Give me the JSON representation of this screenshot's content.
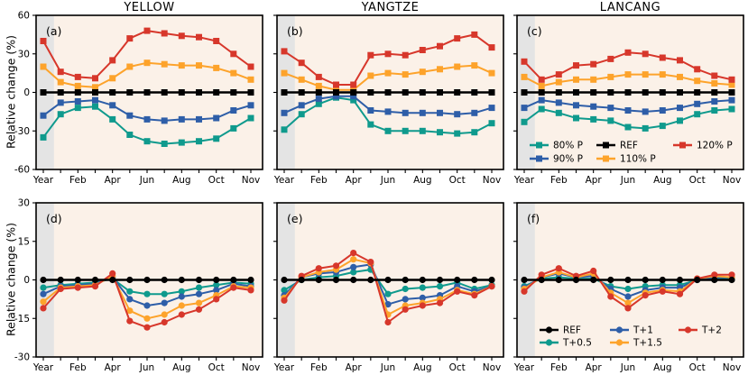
{
  "figure": {
    "column_titles": [
      "YELLOW",
      "YANGTZE",
      "LANCANG"
    ],
    "ylabel": "Relative change (%)",
    "x_tick_labels": [
      "Year",
      "Feb",
      "Apr",
      "Jun",
      "Aug",
      "Oct",
      "Nov"
    ],
    "plot_bg": "#FBF1E8",
    "year_band_color": "#E4E4E4",
    "axis_color": "#000000",
    "colors": {
      "80% P": "#0F9A8D",
      "90% P": "#2E5EA8",
      "REF": "#000000",
      "110% P": "#FDA32B",
      "120% P": "#D7372B",
      "T+0.5": "#0F9A8D",
      "T+1": "#2E5EA8",
      "T+1.5": "#FDA32B",
      "T+2": "#D7372B"
    }
  },
  "legend_precip": {
    "items": [
      {
        "label": "80% P",
        "row": 0,
        "col": 0
      },
      {
        "label": "REF",
        "row": 0,
        "col": 1
      },
      {
        "label": "120% P",
        "row": 0,
        "col": 2
      },
      {
        "label": "90% P",
        "row": 1,
        "col": 0
      },
      {
        "label": "110% P",
        "row": 1,
        "col": 1
      }
    ]
  },
  "legend_temp": {
    "items": [
      {
        "label": "REF",
        "row": 0,
        "col": 0
      },
      {
        "label": "T+1",
        "row": 0,
        "col": 1
      },
      {
        "label": "T+2",
        "row": 0,
        "col": 2
      },
      {
        "label": "T+0.5",
        "row": 1,
        "col": 0
      },
      {
        "label": "T+1.5",
        "row": 1,
        "col": 1
      }
    ]
  },
  "chart_data": [
    {
      "type": "line",
      "panel_label": "(a)",
      "title": "YELLOW",
      "row": 0,
      "col": 0,
      "ylim": [
        -60,
        60
      ],
      "yticks": [
        60,
        30,
        0,
        -30,
        -60
      ],
      "marker": "square",
      "series": [
        {
          "name": "80% P",
          "values": [
            -35,
            -17,
            -12,
            -11,
            -21,
            -33,
            -38,
            -40,
            -39,
            -38,
            -36,
            -28,
            -20
          ]
        },
        {
          "name": "90% P",
          "values": [
            -18,
            -8,
            -7,
            -6,
            -10,
            -18,
            -21,
            -22,
            -21,
            -21,
            -20,
            -14,
            -10
          ]
        },
        {
          "name": "110% P",
          "values": [
            20,
            8,
            5,
            4,
            11,
            20,
            23,
            22,
            21,
            21,
            19,
            15,
            10
          ]
        },
        {
          "name": "120% P",
          "values": [
            40,
            16,
            12,
            11,
            25,
            42,
            48,
            46,
            44,
            43,
            40,
            30,
            20
          ]
        },
        {
          "name": "REF",
          "values": [
            0,
            0,
            0,
            0,
            0,
            0,
            0,
            0,
            0,
            0,
            0,
            0,
            0
          ]
        }
      ]
    },
    {
      "type": "line",
      "panel_label": "(b)",
      "title": "YANGTZE",
      "row": 0,
      "col": 1,
      "ylim": [
        -60,
        60
      ],
      "yticks": [
        60,
        30,
        0,
        -30,
        -60
      ],
      "marker": "square",
      "series": [
        {
          "name": "80% P",
          "values": [
            -29,
            -17,
            -9,
            -4,
            -6,
            -25,
            -30,
            -30,
            -30,
            -31,
            -32,
            -31,
            -24
          ]
        },
        {
          "name": "90% P",
          "values": [
            -16,
            -10,
            -5,
            -3,
            -3,
            -14,
            -15,
            -16,
            -16,
            -16,
            -17,
            -16,
            -12
          ]
        },
        {
          "name": "110% P",
          "values": [
            15,
            10,
            5,
            2,
            2,
            13,
            15,
            14,
            16,
            18,
            20,
            21,
            15
          ]
        },
        {
          "name": "120% P",
          "values": [
            32,
            23,
            12,
            6,
            6,
            29,
            30,
            29,
            33,
            36,
            42,
            45,
            35
          ]
        },
        {
          "name": "REF",
          "values": [
            0,
            0,
            0,
            0,
            0,
            0,
            0,
            0,
            0,
            0,
            0,
            0,
            0
          ]
        }
      ]
    },
    {
      "type": "line",
      "panel_label": "(c)",
      "title": "LANCANG",
      "row": 0,
      "col": 2,
      "ylim": [
        -60,
        60
      ],
      "yticks": [
        60,
        30,
        0,
        -30,
        -60
      ],
      "marker": "square",
      "series": [
        {
          "name": "80% P",
          "values": [
            -23,
            -13,
            -16,
            -20,
            -21,
            -22,
            -27,
            -28,
            -26,
            -22,
            -17,
            -14,
            -13
          ]
        },
        {
          "name": "90% P",
          "values": [
            -12,
            -6,
            -8,
            -10,
            -11,
            -12,
            -14,
            -15,
            -14,
            -12,
            -9,
            -7,
            -6
          ]
        },
        {
          "name": "110% P",
          "values": [
            12,
            5,
            8,
            10,
            10,
            12,
            14,
            14,
            14,
            12,
            9,
            7,
            6
          ]
        },
        {
          "name": "120% P",
          "values": [
            24,
            10,
            14,
            21,
            22,
            26,
            31,
            30,
            27,
            25,
            18,
            13,
            10
          ]
        },
        {
          "name": "REF",
          "values": [
            0,
            0,
            0,
            0,
            0,
            0,
            0,
            0,
            0,
            0,
            0,
            0,
            0
          ]
        }
      ]
    },
    {
      "type": "line",
      "panel_label": "(d)",
      "title": "YELLOW",
      "row": 1,
      "col": 0,
      "ylim": [
        -30,
        30
      ],
      "yticks": [
        30,
        15,
        0,
        -15,
        -30
      ],
      "marker": "circle",
      "series": [
        {
          "name": "T+0.5",
          "values": [
            -3,
            -2,
            -1.5,
            -1,
            0.5,
            -4.5,
            -5.5,
            -5.5,
            -4.5,
            -3,
            -2,
            -1,
            -1.5
          ]
        },
        {
          "name": "T+1",
          "values": [
            -5.5,
            -2.5,
            -2,
            -1.5,
            1,
            -7.5,
            -10,
            -9,
            -6.5,
            -5.5,
            -4,
            -1.5,
            -2.5
          ]
        },
        {
          "name": "T+1.5",
          "values": [
            -8.5,
            -3,
            -2.5,
            -2,
            1.5,
            -12,
            -15,
            -13.5,
            -10,
            -9,
            -6,
            -2.5,
            -3
          ]
        },
        {
          "name": "T+2",
          "values": [
            -11,
            -3.5,
            -3,
            -2.5,
            2.5,
            -16,
            -18.5,
            -16.5,
            -13.5,
            -11.5,
            -7.5,
            -3,
            -4
          ]
        },
        {
          "name": "REF",
          "values": [
            0,
            0,
            0,
            0,
            0,
            0,
            0,
            0,
            0,
            0,
            0,
            0,
            0
          ]
        }
      ]
    },
    {
      "type": "line",
      "panel_label": "(e)",
      "title": "YANGTZE",
      "row": 1,
      "col": 1,
      "ylim": [
        -30,
        30
      ],
      "yticks": [
        30,
        15,
        0,
        -15,
        -30
      ],
      "marker": "circle",
      "series": [
        {
          "name": "T+0.5",
          "values": [
            -4,
            0,
            1,
            1.5,
            3,
            4,
            -5.5,
            -3.5,
            -3,
            -2.5,
            -1,
            -3.5,
            -2
          ]
        },
        {
          "name": "T+1",
          "values": [
            -6,
            1,
            2.5,
            3,
            5,
            6,
            -9.5,
            -7.5,
            -7,
            -6,
            -2.5,
            -4.5,
            -2.5
          ]
        },
        {
          "name": "T+1.5",
          "values": [
            -7,
            1,
            3,
            4,
            8,
            6.5,
            -13.5,
            -10,
            -9,
            -7.5,
            -4,
            -5.5,
            -2.5
          ]
        },
        {
          "name": "T+2",
          "values": [
            -8,
            1.5,
            4.5,
            5.5,
            10.5,
            7,
            -16.5,
            -11.5,
            -10,
            -9,
            -4.5,
            -6,
            -2.5
          ]
        },
        {
          "name": "REF",
          "values": [
            0,
            0,
            0,
            0,
            0,
            0,
            0,
            0,
            0,
            0,
            0,
            0,
            0
          ]
        }
      ]
    },
    {
      "type": "line",
      "panel_label": "(f)",
      "title": "LANCANG",
      "row": 1,
      "col": 2,
      "ylim": [
        -30,
        30
      ],
      "yticks": [
        30,
        15,
        0,
        -15,
        -30
      ],
      "marker": "circle",
      "series": [
        {
          "name": "T+0.5",
          "values": [
            -2.5,
            0.5,
            1,
            0.5,
            0.5,
            -2.5,
            -3.5,
            -2.5,
            -2,
            -2,
            0,
            0.5,
            0.5
          ]
        },
        {
          "name": "T+1",
          "values": [
            -3,
            1,
            2.5,
            1,
            1.5,
            -3.5,
            -6.5,
            -4,
            -3,
            -3,
            0,
            1,
            1
          ]
        },
        {
          "name": "T+1.5",
          "values": [
            -3.5,
            1,
            3,
            1,
            2.5,
            -5,
            -9,
            -5,
            -4,
            -4.5,
            0.5,
            1.5,
            1
          ]
        },
        {
          "name": "T+2",
          "values": [
            -4.5,
            2,
            4.5,
            1.5,
            3.5,
            -6.5,
            -11,
            -6,
            -4.5,
            -5.5,
            0.5,
            2,
            2
          ]
        },
        {
          "name": "REF",
          "values": [
            0,
            0,
            0,
            0,
            0,
            0,
            0,
            0,
            0,
            0,
            0,
            0,
            0
          ]
        }
      ]
    }
  ]
}
